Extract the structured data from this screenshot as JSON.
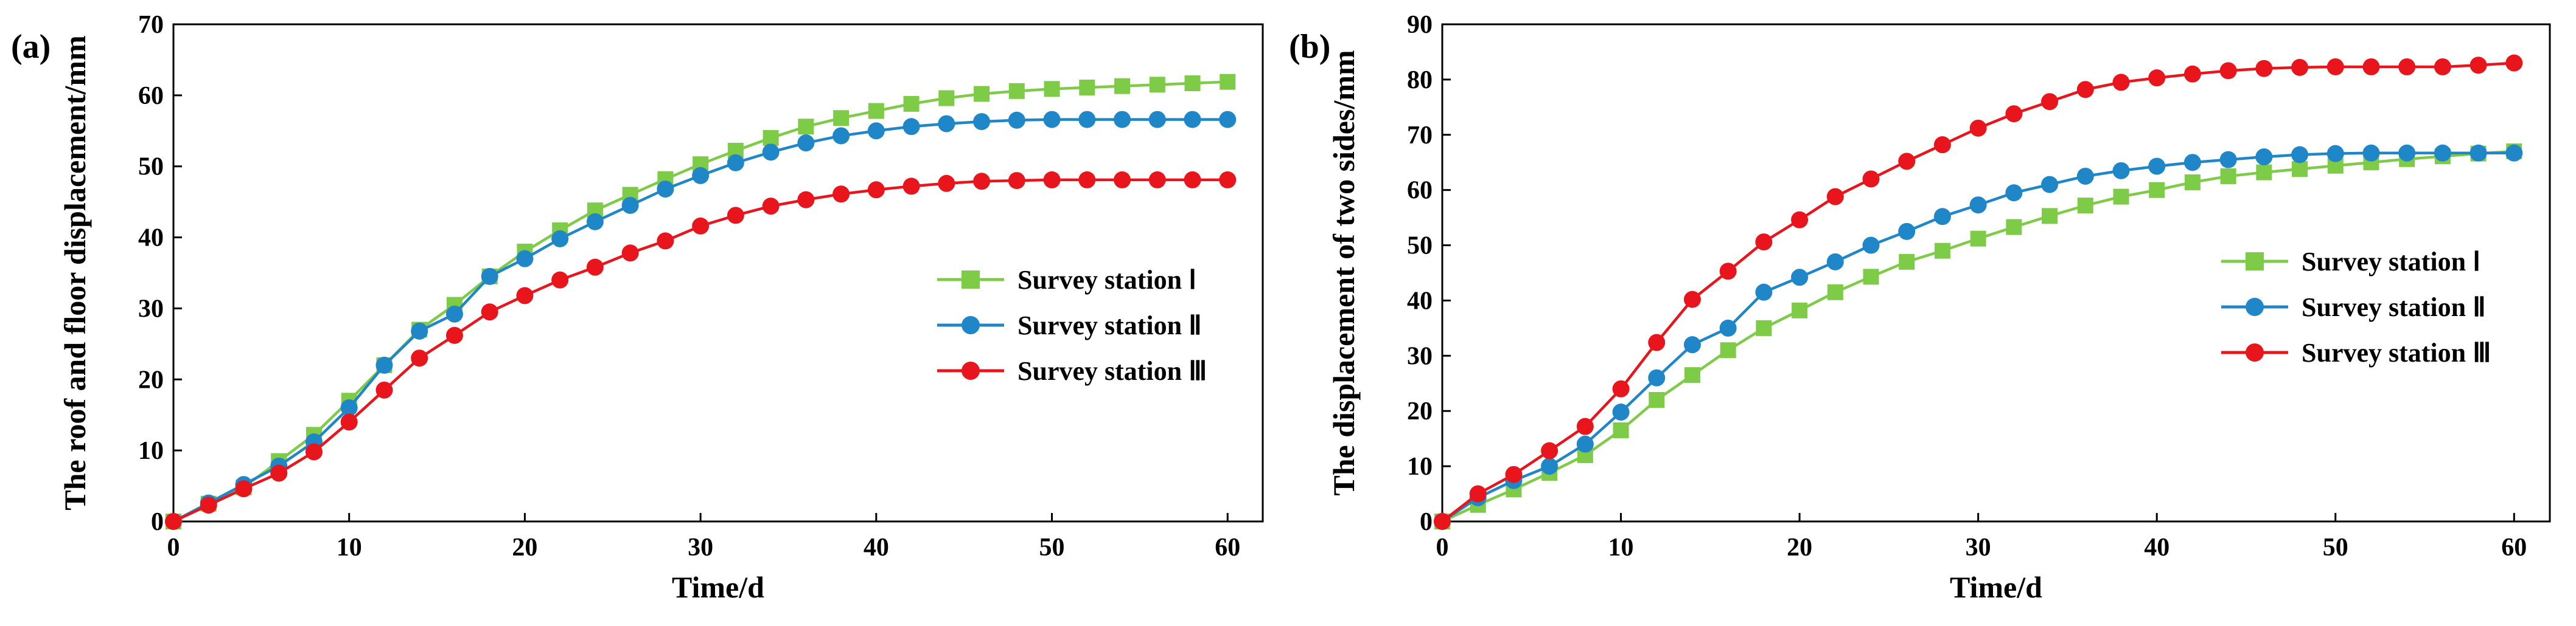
{
  "chart_data": [
    {
      "panel_label": "(a)",
      "type": "line",
      "xlabel": "Time/d",
      "ylabel": "The roof and floor displacement/mm",
      "xlim": [
        0,
        62
      ],
      "ylim": [
        0,
        70
      ],
      "xticks": [
        0,
        10,
        20,
        30,
        40,
        50,
        60
      ],
      "yticks": [
        0,
        10,
        20,
        30,
        40,
        50,
        60,
        70
      ],
      "legend_position": "center-right",
      "series": [
        {
          "name": "Survey station Ⅰ",
          "color": "#7ecb47",
          "marker": "square",
          "x": [
            0,
            2,
            4,
            6,
            8,
            10,
            12,
            14,
            16,
            18,
            20,
            22,
            24,
            26,
            28,
            30,
            32,
            34,
            36,
            38,
            40,
            42,
            44,
            46,
            48,
            50,
            52,
            54,
            56,
            58,
            60
          ],
          "y": [
            0,
            2.5,
            4.8,
            8.5,
            12.2,
            17,
            22,
            27,
            30.5,
            34.5,
            38,
            41,
            43.8,
            46,
            48.2,
            50.3,
            52.2,
            54,
            55.6,
            56.8,
            57.8,
            58.8,
            59.6,
            60.2,
            60.6,
            60.9,
            61.1,
            61.3,
            61.5,
            61.7,
            61.9
          ]
        },
        {
          "name": "Survey station Ⅱ",
          "color": "#1f86c8",
          "marker": "circle",
          "x": [
            0,
            2,
            4,
            6,
            8,
            10,
            12,
            14,
            16,
            18,
            20,
            22,
            24,
            26,
            28,
            30,
            32,
            34,
            36,
            38,
            40,
            42,
            44,
            46,
            48,
            50,
            52,
            54,
            56,
            58,
            60
          ],
          "y": [
            0,
            2.6,
            5.2,
            7.8,
            11.2,
            16,
            22,
            26.8,
            29.2,
            34.5,
            37,
            39.8,
            42.2,
            44.5,
            46.8,
            48.7,
            50.5,
            52,
            53.3,
            54.3,
            55,
            55.6,
            56,
            56.3,
            56.5,
            56.6,
            56.6,
            56.6,
            56.6,
            56.6,
            56.6
          ]
        },
        {
          "name": "Survey station Ⅲ",
          "color": "#e8161c",
          "marker": "circle",
          "x": [
            0,
            2,
            4,
            6,
            8,
            10,
            12,
            14,
            16,
            18,
            20,
            22,
            24,
            26,
            28,
            30,
            32,
            34,
            36,
            38,
            40,
            42,
            44,
            46,
            48,
            50,
            52,
            54,
            56,
            58,
            60
          ],
          "y": [
            0,
            2.3,
            4.6,
            6.8,
            9.8,
            14,
            18.5,
            23,
            26.2,
            29.5,
            31.8,
            34,
            35.8,
            37.8,
            39.5,
            41.6,
            43.1,
            44.4,
            45.3,
            46.1,
            46.7,
            47.2,
            47.6,
            47.9,
            48,
            48.1,
            48.1,
            48.1,
            48.1,
            48.1,
            48.1
          ]
        }
      ]
    },
    {
      "panel_label": "(b)",
      "type": "line",
      "xlabel": "Time/d",
      "ylabel": "The displacement of two sides/mm",
      "xlim": [
        0,
        62
      ],
      "ylim": [
        0,
        90
      ],
      "xticks": [
        0,
        10,
        20,
        30,
        40,
        50,
        60
      ],
      "yticks": [
        0,
        10,
        20,
        30,
        40,
        50,
        60,
        70,
        80,
        90
      ],
      "legend_position": "center-right",
      "series": [
        {
          "name": "Survey station Ⅰ",
          "color": "#7ecb47",
          "marker": "square",
          "x": [
            0,
            2,
            4,
            6,
            8,
            10,
            12,
            14,
            16,
            18,
            20,
            22,
            24,
            26,
            28,
            30,
            32,
            34,
            36,
            38,
            40,
            42,
            44,
            46,
            48,
            50,
            52,
            54,
            56,
            58,
            60
          ],
          "y": [
            0,
            3,
            5.8,
            8.8,
            12,
            16.5,
            22,
            26.5,
            31,
            35,
            38.2,
            41.5,
            44.3,
            47,
            49,
            51.2,
            53.3,
            55.3,
            57.2,
            58.8,
            60,
            61.4,
            62.5,
            63.2,
            63.8,
            64.4,
            65,
            65.6,
            66.1,
            66.6,
            67
          ]
        },
        {
          "name": "Survey station Ⅱ",
          "color": "#1f86c8",
          "marker": "circle",
          "x": [
            0,
            2,
            4,
            6,
            8,
            10,
            12,
            14,
            16,
            18,
            20,
            22,
            24,
            26,
            28,
            30,
            32,
            34,
            36,
            38,
            40,
            42,
            44,
            46,
            48,
            50,
            52,
            54,
            56,
            58,
            60
          ],
          "y": [
            0,
            4.3,
            7.4,
            10,
            14,
            19.8,
            26,
            32,
            35,
            41.5,
            44.2,
            47,
            50,
            52.5,
            55.2,
            57.3,
            59.5,
            61,
            62.5,
            63.5,
            64.3,
            65,
            65.5,
            66,
            66.4,
            66.6,
            66.7,
            66.7,
            66.7,
            66.7,
            66.7
          ]
        },
        {
          "name": "Survey station Ⅲ",
          "color": "#e8161c",
          "marker": "circle",
          "x": [
            0,
            2,
            4,
            6,
            8,
            10,
            12,
            14,
            16,
            18,
            20,
            22,
            24,
            26,
            28,
            30,
            32,
            34,
            36,
            38,
            40,
            42,
            44,
            46,
            48,
            50,
            52,
            54,
            56,
            58,
            60
          ],
          "y": [
            0,
            5,
            8.5,
            12.8,
            17.2,
            24,
            32.4,
            40.2,
            45.3,
            50.6,
            54.6,
            58.8,
            62,
            65.2,
            68.2,
            71.2,
            73.8,
            76,
            78.2,
            79.5,
            80.3,
            81,
            81.6,
            82,
            82.2,
            82.3,
            82.3,
            82.3,
            82.3,
            82.6,
            83
          ]
        }
      ]
    }
  ]
}
